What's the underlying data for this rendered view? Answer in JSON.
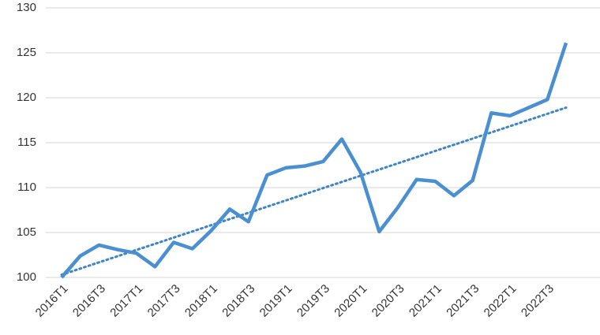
{
  "chart_data": {
    "type": "line",
    "categories": [
      "2016T1",
      null,
      "2016T3",
      null,
      "2017T1",
      null,
      "2017T3",
      null,
      "2018T1",
      null,
      "2018T3",
      null,
      "2019T1",
      null,
      "2019T3",
      null,
      "2020T1",
      null,
      "2020T3",
      null,
      "2021T1",
      null,
      "2021T3",
      null,
      "2022T1",
      null,
      "2022T3",
      null
    ],
    "series": [
      {
        "color": "#4a8fd0",
        "values": [
          100.0,
          102.4,
          103.6,
          103.1,
          102.7,
          101.2,
          103.9,
          103.2,
          105.2,
          107.6,
          106.2,
          111.4,
          112.2,
          112.4,
          112.9,
          115.4,
          111.7,
          105.1,
          107.8,
          110.9,
          110.7,
          109.1,
          110.8,
          118.3,
          118.0,
          118.9,
          119.8,
          126.1
        ]
      }
    ],
    "trendline": {
      "color": "#3f84c6",
      "values": [
        100.3,
        118.9
      ]
    },
    "ylim": [
      100,
      130
    ],
    "yticks": [
      100,
      105,
      110,
      115,
      120,
      125,
      130
    ],
    "grid": true
  }
}
